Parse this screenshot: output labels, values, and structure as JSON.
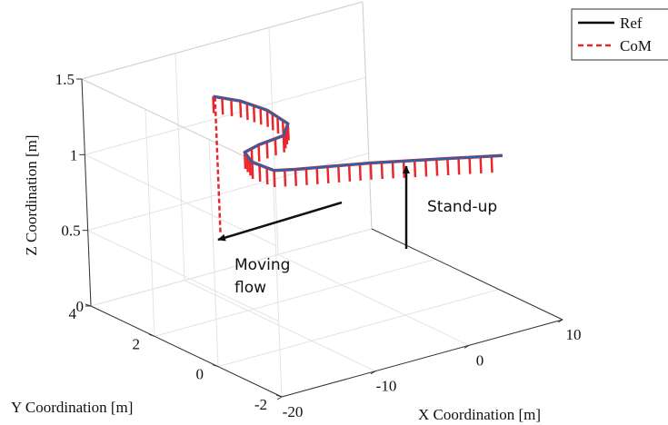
{
  "chart_data": {
    "type": "line",
    "title": "",
    "xlabel": "X Coordination [m]",
    "ylabel": "Y Coordination [m]",
    "zlabel": "Z Coordination [m]",
    "xlim": [
      -20,
      10
    ],
    "ylim": [
      -2,
      4
    ],
    "zlim": [
      0,
      1.5
    ],
    "xticks": [
      "-20",
      "-10",
      "0",
      "10"
    ],
    "yticks": [
      "-2",
      "0",
      "2",
      "4"
    ],
    "zticks": [
      "0",
      "0.5",
      "1",
      "1.5"
    ],
    "grid": true,
    "legend": {
      "placement": "top-right",
      "entries": [
        {
          "name": "Ref",
          "color": "#000000",
          "style": "solid"
        },
        {
          "name": "CoM",
          "color": "#e8262b",
          "style": "dashed"
        }
      ]
    },
    "annotations": [
      {
        "text": "Stand-up"
      },
      {
        "text": "Moving"
      },
      {
        "text": "flow"
      }
    ],
    "colors": {
      "ref": "#2a62a8",
      "com": "#e8262b",
      "arrow": "#111111"
    },
    "series": [
      {
        "name": "Ref",
        "points": [
          [
            -6.2,
            4.0,
            1.15
          ],
          [
            -5.0,
            3.5,
            1.15
          ],
          [
            -4.5,
            2.8,
            1.15
          ],
          [
            -5.0,
            2.0,
            1.15
          ],
          [
            -7.0,
            1.55,
            1.15
          ],
          [
            -10.0,
            1.45,
            1.15
          ],
          [
            -12.0,
            1.3,
            1.15
          ],
          [
            -12.9,
            0.8,
            1.15
          ],
          [
            -12.6,
            0.2,
            1.15
          ],
          [
            -11.0,
            0.0,
            1.15
          ],
          [
            -5.0,
            -0.6,
            1.15
          ],
          [
            0.0,
            -1.2,
            1.15
          ],
          [
            5.0,
            -1.8,
            1.15
          ]
        ]
      },
      {
        "name": "CoM",
        "standup": [
          [
            -6.0,
            4.0,
            0.25
          ],
          [
            -6.0,
            4.0,
            1.15
          ]
        ],
        "points": [
          [
            -6.2,
            4.0,
            1.15
          ],
          [
            -5.0,
            3.5,
            1.15
          ],
          [
            -4.5,
            2.8,
            1.15
          ],
          [
            -5.0,
            2.0,
            1.15
          ],
          [
            -7.0,
            1.55,
            1.15
          ],
          [
            -10.0,
            1.45,
            1.15
          ],
          [
            -12.0,
            1.3,
            1.15
          ],
          [
            -12.9,
            0.8,
            1.15
          ],
          [
            -12.6,
            0.2,
            1.15
          ],
          [
            -11.0,
            0.0,
            1.15
          ],
          [
            -5.0,
            -0.6,
            1.15
          ],
          [
            0.0,
            -1.2,
            1.15
          ],
          [
            5.0,
            -1.8,
            1.15
          ]
        ]
      }
    ]
  }
}
